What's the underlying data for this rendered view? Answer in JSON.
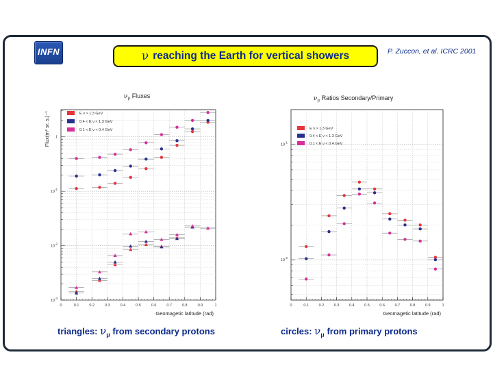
{
  "header": {
    "logo_text": "INFN",
    "title_symbol": "ν",
    "title_text": "reaching the Earth for vertical showers",
    "citation": "P. Zuccon, et al. ICRC 2001"
  },
  "captions": {
    "left_prefix": "triangles:",
    "left_symbol": "ν",
    "left_sub": "μ",
    "left_suffix": "from secondary protons",
    "right_prefix": "circles:",
    "right_symbol": "ν",
    "right_sub": "μ",
    "right_suffix": "from primary protons"
  },
  "colors": {
    "red": "#e8343c",
    "blue": "#2a2f8f",
    "magenta": "#d62f9a",
    "yellow": "#ffff00",
    "frame": "#1f2a38",
    "text_blue": "#0c2a8a"
  },
  "chart_data": [
    {
      "type": "scatter",
      "title_symbol": "ν",
      "title_sub": "μ",
      "title_text": "Fluxes",
      "xlabel": "Geomagetic latitude (rad)",
      "ylabel": "Flux(m² sr. s.)⁻¹",
      "xlim": [
        0,
        1
      ],
      "yscale": "log",
      "ylim_log10": [
        -3,
        0.5
      ],
      "x_ticks": [
        "0",
        "0.1",
        "0.2",
        "0.3",
        "0.4",
        "0.5",
        "0.6",
        "0.7",
        "0.8",
        "0.9",
        "1"
      ],
      "y_ticks": [
        {
          "base": "10",
          "exp": "-3",
          "value": 0.001
        },
        {
          "base": "10",
          "exp": "-2",
          "value": 0.01
        },
        {
          "base": "10",
          "exp": "-1",
          "value": 0.1
        },
        {
          "base": "1",
          "exp": "",
          "value": 1
        }
      ],
      "grid": true,
      "legend_position": "top-left",
      "x": [
        0.1,
        0.25,
        0.35,
        0.45,
        0.55,
        0.65,
        0.75,
        0.85,
        0.95
      ],
      "series": [
        {
          "name": "E ν > 1.3 GeV",
          "color": "red",
          "marker": "circle",
          "values": [
            0.112,
            0.118,
            0.14,
            0.18,
            0.26,
            0.42,
            0.7,
            1.25,
            1.85
          ]
        },
        {
          "name": "0.4 < E ν < 1.3 GeV",
          "color": "blue",
          "marker": "circle",
          "values": [
            0.19,
            0.2,
            0.24,
            0.29,
            0.39,
            0.6,
            0.85,
            1.4,
            2.0
          ]
        },
        {
          "name": "0.1 < E ν < 0.4 GeV",
          "color": "magenta",
          "marker": "circle",
          "values": [
            0.4,
            0.42,
            0.48,
            0.58,
            0.78,
            1.1,
            1.5,
            2.0,
            2.8
          ]
        },
        {
          "name": "",
          "color": "red",
          "marker": "triangle",
          "values": [
            0.00145,
            0.0023,
            0.0045,
            0.0085,
            0.0105,
            0.0097,
            0.014,
            0.022,
            0.021
          ]
        },
        {
          "name": "",
          "color": "blue",
          "marker": "triangle",
          "values": [
            0.00135,
            0.0025,
            0.005,
            0.0098,
            0.012,
            0.0095,
            0.0135,
            0.022,
            0.021
          ]
        },
        {
          "name": "",
          "color": "magenta",
          "marker": "triangle",
          "values": [
            0.0017,
            0.0033,
            0.0066,
            0.0165,
            0.018,
            0.013,
            0.016,
            0.023,
            0.021
          ]
        }
      ]
    },
    {
      "type": "scatter",
      "title_symbol": "ν",
      "title_sub": "μ",
      "title_text": "Ratios Secondary/Primary",
      "xlabel": "Geomagetic latitude (rad)",
      "ylabel": "",
      "xlim": [
        0,
        1
      ],
      "yscale": "log",
      "ylim_log10": [
        -2.35,
        -0.7
      ],
      "x_ticks": [
        "0",
        "0.1",
        "0.2",
        "0.3",
        "0.4",
        "0.5",
        "0.6",
        "0.7",
        "0.8",
        "0.9",
        "1"
      ],
      "y_ticks": [
        {
          "base": "10",
          "exp": "-2",
          "value": 0.01
        },
        {
          "base": "10",
          "exp": "-1",
          "value": 0.1
        }
      ],
      "grid": true,
      "legend_position": "top-left",
      "x": [
        0.1,
        0.25,
        0.35,
        0.45,
        0.55,
        0.65,
        0.75,
        0.85,
        0.95
      ],
      "series": [
        {
          "name": "E ν > 1.3 GeV",
          "color": "red",
          "marker": "circle",
          "values": [
            0.013,
            0.024,
            0.036,
            0.047,
            0.041,
            0.025,
            0.022,
            0.02,
            0.0105
          ]
        },
        {
          "name": "0.4 < E ν < 1.3 GeV",
          "color": "blue",
          "marker": "circle",
          "values": [
            0.0102,
            0.0175,
            0.028,
            0.041,
            0.038,
            0.0225,
            0.02,
            0.0185,
            0.01
          ]
        },
        {
          "name": "0.1 < E ν < 0.4 GeV",
          "color": "magenta",
          "marker": "circle",
          "values": [
            0.0068,
            0.011,
            0.0205,
            0.037,
            0.031,
            0.017,
            0.015,
            0.0145,
            0.0083
          ]
        }
      ]
    }
  ]
}
